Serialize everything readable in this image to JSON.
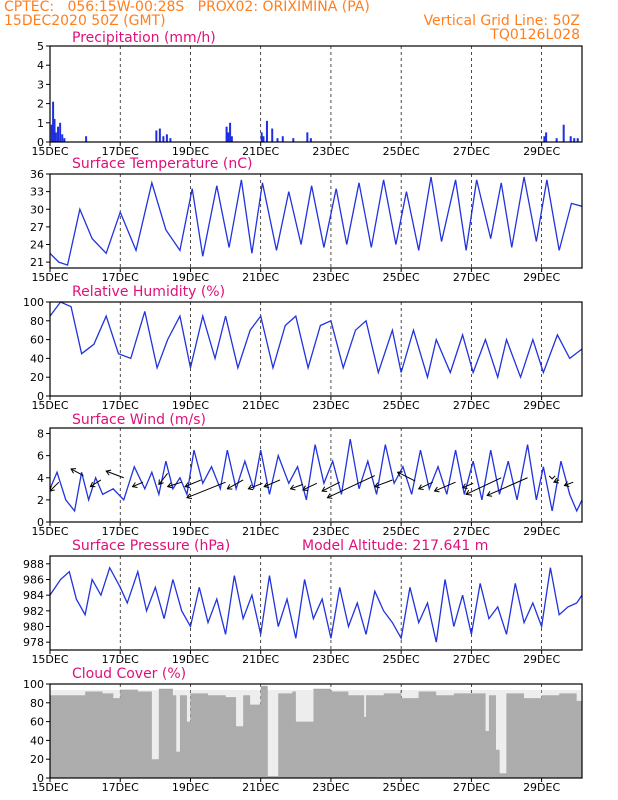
{
  "header": {
    "line1_left": "CPTEC:   056:15W-00:28S   PROX02: ORIXIMINA (PA)",
    "line2_left": "15DEC2020 50Z (GMT)",
    "line2_right": "Vertical Grid Line: 50Z",
    "line3_right": "TQ0126L028"
  },
  "colors": {
    "header": "#ff7f1f",
    "title": "#e0107a",
    "line": "#2233dd",
    "bar": "#1f2ee0",
    "cloud": "#a9a9a9"
  },
  "x_axis": {
    "tick_labels": [
      "15DEC",
      "17DEC",
      "19DEC",
      "21DEC",
      "23DEC",
      "25DEC",
      "27DEC",
      "29DEC"
    ],
    "tick_days": [
      0,
      2,
      4,
      6,
      8,
      10,
      12,
      14
    ],
    "start_label": "15DEC2020",
    "day_range": [
      0,
      15.15
    ]
  },
  "chart_data": [
    {
      "type": "bar",
      "title": "Precipitation (mm/h)",
      "ylim": [
        0,
        5
      ],
      "yticks": [
        "0",
        "1",
        "2",
        "3",
        "4",
        "5"
      ],
      "series": [
        {
          "x_days": [
            0.02,
            0.06,
            0.1,
            0.14,
            0.2,
            0.26,
            0.32,
            0.38,
            1.0,
            3.0,
            3.1,
            3.2,
            3.3,
            3.4,
            5.0,
            5.05,
            5.1,
            5.15,
            6.0,
            6.05,
            6.15,
            6.3,
            6.45,
            6.6,
            6.9,
            7.3,
            7.4,
            14.05,
            14.1,
            14.4,
            14.6,
            14.8,
            14.9,
            15.0
          ],
          "values": [
            0.9,
            2.1,
            1.2,
            0.5,
            0.8,
            1.0,
            0.4,
            0.2,
            0.3,
            0.6,
            0.7,
            0.3,
            0.4,
            0.2,
            0.8,
            0.5,
            1.0,
            0.3,
            0.5,
            0.3,
            1.1,
            0.7,
            0.2,
            0.3,
            0.2,
            0.5,
            0.2,
            0.3,
            0.5,
            0.2,
            0.9,
            0.3,
            0.2,
            0.2
          ]
        }
      ]
    },
    {
      "type": "line",
      "title": "Surface Temperature (nC)",
      "ylim": [
        20,
        36
      ],
      "yticks": [
        "21",
        "24",
        "27",
        "30",
        "33",
        "36"
      ],
      "ytick_values": [
        21,
        24,
        27,
        30,
        33,
        36
      ],
      "series": [
        {
          "x_days": [
            0,
            0.25,
            0.5,
            0.85,
            1.2,
            1.6,
            2.0,
            2.45,
            2.9,
            3.3,
            3.7,
            4.05,
            4.35,
            4.75,
            5.1,
            5.45,
            5.75,
            6.05,
            6.45,
            6.8,
            7.15,
            7.45,
            7.8,
            8.15,
            8.45,
            8.8,
            9.15,
            9.5,
            9.85,
            10.15,
            10.5,
            10.85,
            11.15,
            11.55,
            11.85,
            12.15,
            12.55,
            12.85,
            13.15,
            13.5,
            13.85,
            14.15,
            14.5,
            14.85,
            15.15
          ],
          "values": [
            22.5,
            21.0,
            20.5,
            30.0,
            25.0,
            22.5,
            29.5,
            23.0,
            34.5,
            26.5,
            23.0,
            33.5,
            22.0,
            34.0,
            23.5,
            35.0,
            22.5,
            34.5,
            23.0,
            33.0,
            24.0,
            34.0,
            23.5,
            33.5,
            24.0,
            34.5,
            23.5,
            35.0,
            24.0,
            33.0,
            23.0,
            35.5,
            24.5,
            35.0,
            23.0,
            35.0,
            25.0,
            34.5,
            23.5,
            35.5,
            24.5,
            35.0,
            23.0,
            31.0,
            30.5
          ]
        }
      ]
    },
    {
      "type": "line",
      "title": "Relative Humidity (%)",
      "ylim": [
        0,
        100
      ],
      "yticks": [
        "0",
        "20",
        "40",
        "60",
        "80",
        "100"
      ],
      "ytick_values": [
        0,
        20,
        40,
        60,
        80,
        100
      ],
      "series": [
        {
          "x_days": [
            0,
            0.3,
            0.6,
            0.9,
            1.25,
            1.6,
            1.95,
            2.3,
            2.7,
            3.05,
            3.35,
            3.7,
            4.0,
            4.35,
            4.7,
            5.0,
            5.35,
            5.7,
            6.0,
            6.35,
            6.7,
            7.0,
            7.35,
            7.7,
            8.0,
            8.35,
            8.7,
            9.0,
            9.35,
            9.75,
            10.0,
            10.35,
            10.75,
            11.0,
            11.4,
            11.75,
            12.05,
            12.4,
            12.75,
            13.0,
            13.4,
            13.75,
            14.05,
            14.45,
            14.8,
            15.15
          ],
          "values": [
            85,
            100,
            95,
            45,
            55,
            85,
            45,
            40,
            90,
            30,
            60,
            85,
            30,
            85,
            40,
            85,
            30,
            70,
            85,
            30,
            75,
            85,
            30,
            75,
            80,
            30,
            70,
            80,
            25,
            70,
            25,
            70,
            20,
            60,
            25,
            65,
            25,
            60,
            20,
            60,
            20,
            60,
            25,
            65,
            40,
            50
          ]
        }
      ]
    },
    {
      "type": "line",
      "title": "Surface Wind (m/s)",
      "ylim": [
        0,
        8.5
      ],
      "yticks": [
        "0",
        "2",
        "4",
        "6",
        "8"
      ],
      "ytick_values": [
        0,
        2,
        4,
        6,
        8
      ],
      "series": [
        {
          "x_days": [
            0,
            0.2,
            0.45,
            0.7,
            0.9,
            1.1,
            1.3,
            1.5,
            1.8,
            2.1,
            2.4,
            2.7,
            2.9,
            3.1,
            3.3,
            3.5,
            3.7,
            3.9,
            4.1,
            4.35,
            4.6,
            4.85,
            5.05,
            5.3,
            5.55,
            5.8,
            6.0,
            6.25,
            6.5,
            6.8,
            7.05,
            7.3,
            7.55,
            7.8,
            8.05,
            8.3,
            8.55,
            8.8,
            9.05,
            9.3,
            9.55,
            9.8,
            10.05,
            10.3,
            10.55,
            10.8,
            11.05,
            11.3,
            11.55,
            11.8,
            12.05,
            12.3,
            12.55,
            12.8,
            13.05,
            13.3,
            13.6,
            13.85,
            14.05,
            14.3,
            14.55,
            14.8,
            15.0,
            15.15
          ],
          "values": [
            3,
            4.5,
            2,
            1,
            4.5,
            2,
            4,
            2.5,
            3,
            2,
            5,
            3,
            4.5,
            2.5,
            5.5,
            3,
            4,
            2.5,
            6.5,
            3.5,
            5,
            3,
            6.5,
            3,
            5.5,
            3,
            6.5,
            2.5,
            6,
            3.5,
            5,
            2,
            7,
            3.5,
            5.5,
            2.5,
            7.5,
            3,
            5.5,
            2.5,
            7,
            3.5,
            5,
            2.5,
            6.5,
            3,
            5,
            2.5,
            6.5,
            2.5,
            5.5,
            2,
            6.5,
            2.5,
            5.5,
            2,
            7,
            2,
            5,
            1,
            5.5,
            2.5,
            1,
            2
          ]
        }
      ],
      "wind_vectors": [
        {
          "x_day": 0.25,
          "y": 3.6,
          "dx_day": -0.25,
          "dy": -0.8
        },
        {
          "x_day": 0.95,
          "y": 4.2,
          "dx_day": -0.35,
          "dy": 0.6
        },
        {
          "x_day": 1.45,
          "y": 3.8,
          "dx_day": -0.3,
          "dy": -0.6
        },
        {
          "x_day": 2.1,
          "y": 4.0,
          "dx_day": -0.5,
          "dy": 0.6
        },
        {
          "x_day": 2.65,
          "y": 3.6,
          "dx_day": -0.3,
          "dy": -0.4
        },
        {
          "x_day": 3.35,
          "y": 4.4,
          "dx_day": -0.25,
          "dy": -1.0
        },
        {
          "x_day": 3.75,
          "y": 3.6,
          "dx_day": -0.4,
          "dy": -0.4
        },
        {
          "x_day": 4.3,
          "y": 3.8,
          "dx_day": -0.45,
          "dy": -0.6
        },
        {
          "x_day": 5.0,
          "y": 3.6,
          "dx_day": -1.1,
          "dy": -1.4
        },
        {
          "x_day": 5.5,
          "y": 3.8,
          "dx_day": -0.45,
          "dy": -0.8
        },
        {
          "x_day": 6.05,
          "y": 3.5,
          "dx_day": -0.4,
          "dy": -0.5
        },
        {
          "x_day": 6.55,
          "y": 3.8,
          "dx_day": -0.45,
          "dy": -0.6
        },
        {
          "x_day": 7.2,
          "y": 3.4,
          "dx_day": -0.35,
          "dy": -0.4
        },
        {
          "x_day": 7.6,
          "y": 3.5,
          "dx_day": -0.4,
          "dy": -0.6
        },
        {
          "x_day": 8.25,
          "y": 3.6,
          "dx_day": -0.5,
          "dy": -0.8
        },
        {
          "x_day": 9.25,
          "y": 4.2,
          "dx_day": -1.35,
          "dy": -2.0
        },
        {
          "x_day": 9.75,
          "y": 3.8,
          "dx_day": -0.5,
          "dy": -0.6
        },
        {
          "x_day": 10.4,
          "y": 3.7,
          "dx_day": -0.5,
          "dy": 0.8
        },
        {
          "x_day": 10.9,
          "y": 3.6,
          "dx_day": -0.4,
          "dy": -0.6
        },
        {
          "x_day": 11.55,
          "y": 3.6,
          "dx_day": -0.6,
          "dy": -0.8
        },
        {
          "x_day": 12.05,
          "y": 3.5,
          "dx_day": -0.3,
          "dy": -0.4
        },
        {
          "x_day": 12.85,
          "y": 4.0,
          "dx_day": -1.0,
          "dy": -1.5
        },
        {
          "x_day": 13.6,
          "y": 4.0,
          "dx_day": -1.15,
          "dy": -1.6
        },
        {
          "x_day": 14.3,
          "y": 3.9,
          "dx_day": 0.0,
          "dy": 0.0
        },
        {
          "x_day": 14.5,
          "y": 3.8,
          "dx_day": -0.15,
          "dy": -0.2
        },
        {
          "x_day": 14.9,
          "y": 3.6,
          "dx_day": -0.25,
          "dy": -0.3
        }
      ]
    },
    {
      "type": "line",
      "title": "Surface Pressure (hPa)",
      "annotation": "Model Altitude: 217.641  m",
      "ylim": [
        977,
        989
      ],
      "yticks": [
        "978",
        "980",
        "982",
        "984",
        "986",
        "988"
      ],
      "ytick_values": [
        978,
        980,
        982,
        984,
        986,
        988
      ],
      "series": [
        {
          "x_days": [
            0,
            0.3,
            0.55,
            0.75,
            1.0,
            1.2,
            1.45,
            1.7,
            2.0,
            2.2,
            2.5,
            2.75,
            3.0,
            3.25,
            3.5,
            3.75,
            4.0,
            4.25,
            4.5,
            4.75,
            5.0,
            5.25,
            5.5,
            5.75,
            6.0,
            6.25,
            6.5,
            6.75,
            7.0,
            7.25,
            7.5,
            7.75,
            8.0,
            8.25,
            8.5,
            8.75,
            9.0,
            9.25,
            9.5,
            9.75,
            10.0,
            10.25,
            10.5,
            10.75,
            11.0,
            11.25,
            11.5,
            11.75,
            12.0,
            12.25,
            12.5,
            12.75,
            13.0,
            13.25,
            13.5,
            13.75,
            14.0,
            14.25,
            14.5,
            14.75,
            15.0,
            15.15
          ],
          "values": [
            984,
            986,
            987,
            983.5,
            981.5,
            986,
            984,
            987.5,
            985,
            983,
            987,
            982,
            985,
            981,
            986,
            982,
            980,
            985,
            980.5,
            983.5,
            979,
            986.5,
            981,
            984,
            979,
            986.5,
            980,
            983.5,
            978.5,
            986,
            981,
            983.5,
            978.5,
            985,
            980,
            983,
            979,
            984.5,
            982,
            980.5,
            978.5,
            985,
            980.5,
            983,
            978,
            986,
            980,
            984,
            979,
            985.5,
            981,
            982.5,
            979,
            985.5,
            980.5,
            983,
            980,
            987.5,
            981.5,
            982.5,
            983,
            984
          ]
        }
      ]
    },
    {
      "type": "bar",
      "title": "Cloud Cover (%)",
      "ylim": [
        0,
        100
      ],
      "yticks": [
        "0",
        "20",
        "40",
        "60",
        "80",
        "100"
      ],
      "ytick_values": [
        0,
        20,
        40,
        60,
        80,
        100
      ],
      "series": [
        {
          "x_days": [
            0,
            0.5,
            1,
            1.5,
            1.8,
            2,
            2.5,
            2.9,
            3.1,
            3.5,
            3.6,
            3.7,
            3.9,
            4,
            4.5,
            5,
            5.3,
            5.5,
            5.7,
            6,
            6.2,
            6.5,
            6.9,
            7,
            7.5,
            8,
            8.5,
            8.95,
            9,
            9.5,
            10,
            10.5,
            11,
            11.5,
            12,
            12.4,
            12.5,
            12.7,
            12.8,
            13,
            13.5,
            14,
            14.5,
            15
          ],
          "values": [
            88,
            88,
            92,
            90,
            85,
            94,
            92,
            20,
            95,
            88,
            28,
            88,
            60,
            90,
            88,
            86,
            55,
            88,
            78,
            98,
            2,
            90,
            92,
            60,
            95,
            92,
            88,
            65,
            88,
            90,
            85,
            92,
            88,
            90,
            90,
            50,
            88,
            30,
            5,
            90,
            85,
            88,
            90,
            82
          ]
        }
      ]
    }
  ]
}
